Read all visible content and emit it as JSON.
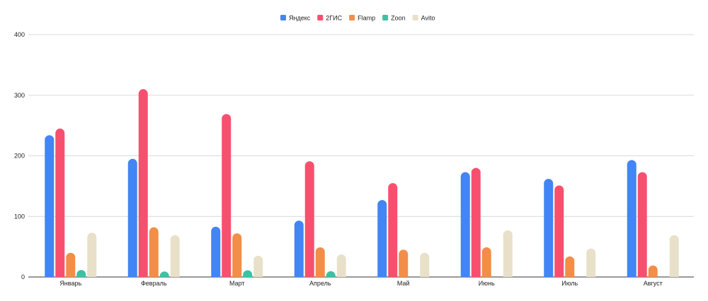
{
  "chart_data": {
    "type": "bar",
    "categories": [
      "Январь",
      "Февраль",
      "Март",
      "Апрель",
      "Май",
      "Июнь",
      "Июль",
      "Август"
    ],
    "series": [
      {
        "name": "Яндекс",
        "color": "#4285f4",
        "values": [
          234,
          195,
          83,
          93,
          127,
          173,
          162,
          193
        ]
      },
      {
        "name": "2ГИС",
        "color": "#f7506e",
        "values": [
          245,
          310,
          269,
          191,
          155,
          180,
          151,
          173
        ]
      },
      {
        "name": "Flamp",
        "color": "#f28e48",
        "values": [
          40,
          82,
          72,
          49,
          45,
          49,
          34,
          19
        ]
      },
      {
        "name": "Zoon",
        "color": "#3cc1a3",
        "values": [
          8,
          3,
          7,
          4,
          0,
          0,
          0,
          0
        ]
      },
      {
        "name": "Avito",
        "color": "#e8e0c8",
        "values": [
          73,
          69,
          35,
          37,
          40,
          77,
          47,
          69
        ]
      }
    ],
    "y_ticks": [
      "0",
      "100",
      "200",
      "300",
      "400"
    ],
    "ylim": [
      0,
      400
    ],
    "grid": true,
    "legend_position": "top-center"
  }
}
